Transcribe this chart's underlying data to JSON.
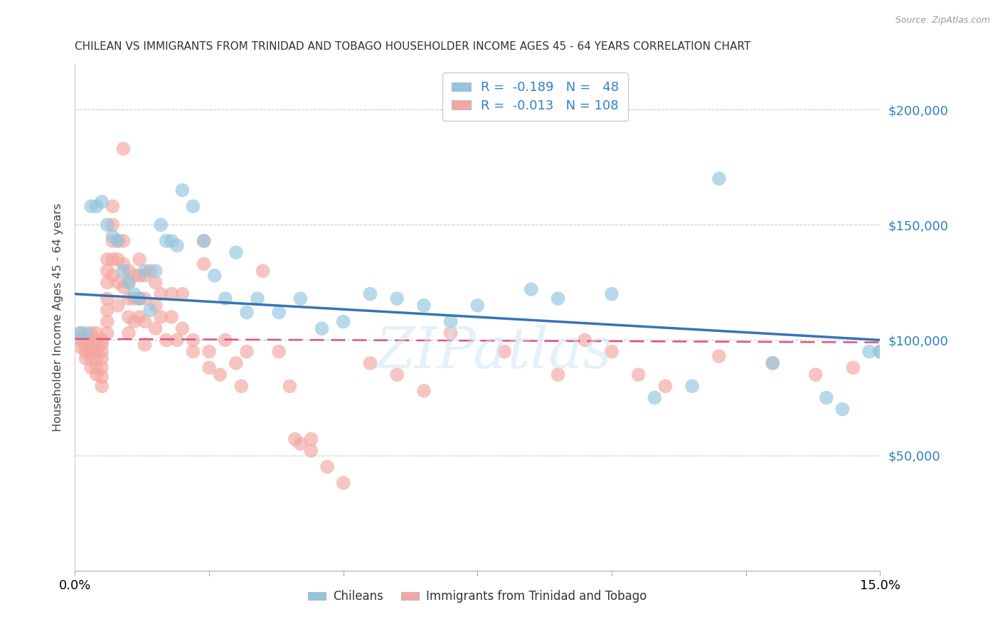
{
  "title": "CHILEAN VS IMMIGRANTS FROM TRINIDAD AND TOBAGO HOUSEHOLDER INCOME AGES 45 - 64 YEARS CORRELATION CHART",
  "source": "Source: ZipAtlas.com",
  "ylabel": "Householder Income Ages 45 - 64 years",
  "xmin": 0.0,
  "xmax": 0.15,
  "ymin": 0,
  "ymax": 220000,
  "yticks": [
    50000,
    100000,
    150000,
    200000
  ],
  "ytick_labels": [
    "$50,000",
    "$100,000",
    "$150,000",
    "$200,000"
  ],
  "color_blue": "#92c5de",
  "color_pink": "#f4a6a0",
  "line_blue": "#3575b5",
  "line_pink": "#e05080",
  "watermark": "ZIPatlas",
  "legend_label_chileans": "Chileans",
  "legend_label_tt": "Immigrants from Trinidad and Tobago",
  "blue_x": [
    0.001,
    0.002,
    0.003,
    0.004,
    0.005,
    0.006,
    0.007,
    0.008,
    0.009,
    0.01,
    0.011,
    0.012,
    0.013,
    0.014,
    0.015,
    0.016,
    0.017,
    0.018,
    0.019,
    0.02,
    0.022,
    0.024,
    0.026,
    0.028,
    0.03,
    0.032,
    0.034,
    0.038,
    0.042,
    0.046,
    0.05,
    0.055,
    0.06,
    0.065,
    0.07,
    0.075,
    0.085,
    0.09,
    0.1,
    0.108,
    0.115,
    0.12,
    0.13,
    0.14,
    0.143,
    0.148,
    0.15,
    0.15
  ],
  "blue_y": [
    103000,
    103000,
    158000,
    158000,
    160000,
    150000,
    145000,
    143000,
    130000,
    125000,
    120000,
    118000,
    130000,
    113000,
    130000,
    150000,
    143000,
    143000,
    141000,
    165000,
    158000,
    143000,
    128000,
    118000,
    138000,
    112000,
    118000,
    112000,
    118000,
    105000,
    108000,
    120000,
    118000,
    115000,
    108000,
    115000,
    122000,
    118000,
    120000,
    75000,
    80000,
    170000,
    90000,
    75000,
    70000,
    95000,
    95000,
    95000
  ],
  "pink_x": [
    0.001,
    0.001,
    0.001,
    0.002,
    0.002,
    0.002,
    0.003,
    0.003,
    0.003,
    0.003,
    0.003,
    0.003,
    0.004,
    0.004,
    0.004,
    0.004,
    0.004,
    0.004,
    0.004,
    0.005,
    0.005,
    0.005,
    0.005,
    0.005,
    0.005,
    0.005,
    0.006,
    0.006,
    0.006,
    0.006,
    0.006,
    0.006,
    0.006,
    0.007,
    0.007,
    0.007,
    0.007,
    0.007,
    0.008,
    0.008,
    0.008,
    0.008,
    0.009,
    0.009,
    0.009,
    0.009,
    0.01,
    0.01,
    0.01,
    0.01,
    0.01,
    0.011,
    0.011,
    0.011,
    0.012,
    0.012,
    0.012,
    0.012,
    0.013,
    0.013,
    0.013,
    0.013,
    0.014,
    0.015,
    0.015,
    0.015,
    0.016,
    0.016,
    0.017,
    0.018,
    0.018,
    0.019,
    0.02,
    0.02,
    0.022,
    0.022,
    0.024,
    0.024,
    0.025,
    0.025,
    0.027,
    0.028,
    0.03,
    0.031,
    0.032,
    0.035,
    0.038,
    0.04,
    0.041,
    0.042,
    0.044,
    0.044,
    0.047,
    0.05,
    0.055,
    0.06,
    0.065,
    0.07,
    0.08,
    0.09,
    0.095,
    0.1,
    0.105,
    0.11,
    0.12,
    0.13,
    0.138,
    0.145
  ],
  "pink_y": [
    103000,
    100000,
    97000,
    97000,
    95000,
    92000,
    103000,
    100000,
    97000,
    95000,
    92000,
    88000,
    103000,
    100000,
    98000,
    95000,
    92000,
    88000,
    85000,
    100000,
    98000,
    95000,
    92000,
    88000,
    84000,
    80000,
    135000,
    130000,
    125000,
    118000,
    113000,
    108000,
    103000,
    158000,
    150000,
    143000,
    135000,
    128000,
    143000,
    135000,
    125000,
    115000,
    183000,
    143000,
    133000,
    123000,
    130000,
    125000,
    118000,
    110000,
    103000,
    128000,
    118000,
    108000,
    135000,
    128000,
    118000,
    110000,
    128000,
    118000,
    108000,
    98000,
    130000,
    125000,
    115000,
    105000,
    120000,
    110000,
    100000,
    120000,
    110000,
    100000,
    120000,
    105000,
    100000,
    95000,
    143000,
    133000,
    95000,
    88000,
    85000,
    100000,
    90000,
    80000,
    95000,
    130000,
    95000,
    80000,
    57000,
    55000,
    57000,
    52000,
    45000,
    38000,
    90000,
    85000,
    78000,
    103000,
    95000,
    85000,
    100000,
    95000,
    85000,
    80000,
    93000,
    90000,
    85000,
    88000
  ]
}
